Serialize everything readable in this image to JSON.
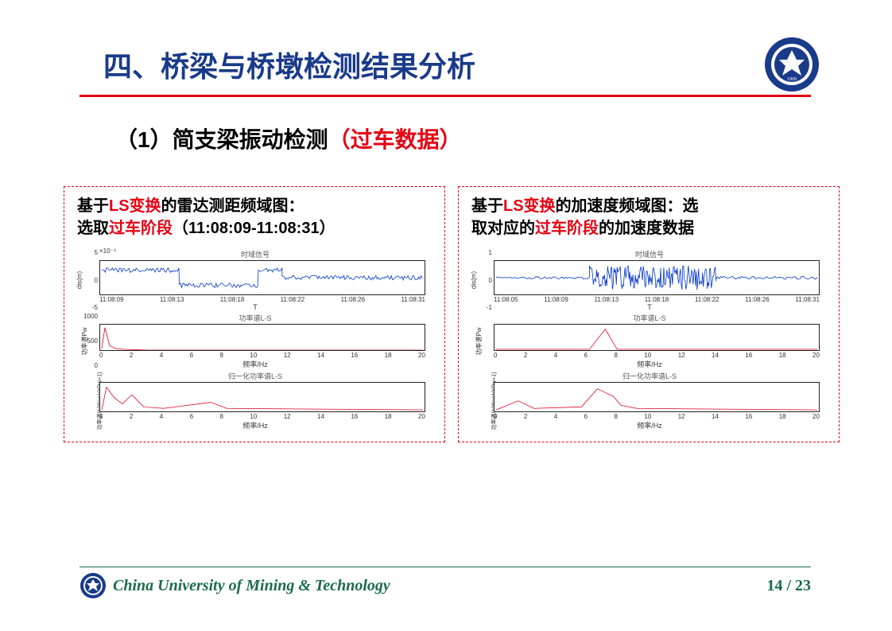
{
  "title": "四、桥梁与桥墩检测结果分析",
  "subtitle": {
    "prefix": "（1）简支梁振动检测",
    "suffix": "（过车数据）"
  },
  "colors": {
    "title": "#1a3a8a",
    "accent": "#e60012",
    "footer": "#1a6b4a",
    "signal_blue": "#0033cc",
    "signal_red": "#dd0022",
    "black": "#000000"
  },
  "footer": {
    "org": "China University of Mining  & Technology",
    "page_current": "14",
    "page_total": "23"
  },
  "left_panel": {
    "title_parts": [
      {
        "t": "基于",
        "c": "black"
      },
      {
        "t": "LS变换",
        "c": "red"
      },
      {
        "t": "的雷达测距频域图：",
        "c": "black"
      },
      {
        "t": "\n",
        "c": "black"
      },
      {
        "t": "选取",
        "c": "black"
      },
      {
        "t": "过车阶段",
        "c": "red"
      },
      {
        "t": "（11:08:09-11:08:31）",
        "c": "black"
      }
    ],
    "chart1": {
      "title": "时域信号",
      "ylabel": "dis(m)",
      "yexp": "×10⁻⁴",
      "height": 44,
      "yticks": [
        "5",
        "0",
        "-5"
      ],
      "xticks": [
        "11:08:09",
        "11:08:13",
        "11:08:18",
        "11:08:22",
        "11:08:26",
        "11:08:31"
      ],
      "xlabel": "T",
      "color": "#0033cc",
      "ylim": [
        -5,
        5
      ]
    },
    "chart2": {
      "title": "功率谱L-S",
      "ylabel": "功率谱Pw",
      "height": 34,
      "yticks": [
        "1000",
        "500",
        "0"
      ],
      "xticks": [
        "0",
        "2",
        "4",
        "6",
        "8",
        "10",
        "12",
        "14",
        "16",
        "18",
        "20"
      ],
      "xlabel": "频率/Hz",
      "color": "#dd0022",
      "ylim": [
        0,
        1000
      ]
    },
    "chart3": {
      "title": "归一化功率谱L-S",
      "ylabel": "功率谱/10*log10(Pw+1)",
      "height": 38,
      "yticks": [
        "",
        "",
        ""
      ],
      "xticks": [
        "0",
        "2",
        "4",
        "6",
        "8",
        "10",
        "12",
        "14",
        "16",
        "18",
        "20"
      ],
      "xlabel": "频率/Hz",
      "color": "#dd0022",
      "ylim": [
        0,
        10
      ]
    }
  },
  "right_panel": {
    "title_parts": [
      {
        "t": "基于",
        "c": "black"
      },
      {
        "t": "LS变换",
        "c": "red"
      },
      {
        "t": "的加速度频域图：选",
        "c": "black"
      },
      {
        "t": "\n",
        "c": "black"
      },
      {
        "t": "取对应的",
        "c": "black"
      },
      {
        "t": "过车阶段",
        "c": "red"
      },
      {
        "t": "的加速度数据",
        "c": "black"
      }
    ],
    "chart1": {
      "title": "时域信号",
      "ylabel": "dis(m)",
      "height": 44,
      "yticks": [
        "1",
        "0",
        "-1"
      ],
      "xticks": [
        "11:08:05",
        "11:08:09",
        "11:08:13",
        "11:08:18",
        "11:08:22",
        "11:08:26",
        "11:08:31"
      ],
      "xlabel": "T",
      "color": "#0033cc",
      "ylim": [
        -1,
        1
      ]
    },
    "chart2": {
      "title": "功率谱L-S",
      "ylabel": "功率谱Pw",
      "height": 34,
      "yticks": [
        "",
        "",
        ""
      ],
      "xticks": [
        "0",
        "2",
        "4",
        "6",
        "8",
        "10",
        "12",
        "14",
        "16",
        "18",
        "20"
      ],
      "xlabel": "频率/Hz",
      "color": "#dd0022",
      "ylim": [
        0,
        1
      ]
    },
    "chart3": {
      "title": "归一化功率谱L-S",
      "ylabel": "功率谱/10*log10(Pw+1)",
      "height": 38,
      "yticks": [
        "",
        "",
        ""
      ],
      "xticks": [
        "0",
        "2",
        "4",
        "6",
        "8",
        "10",
        "12",
        "14",
        "16",
        "18",
        "20"
      ],
      "xlabel": "频率/Hz",
      "color": "#dd0022",
      "ylim": [
        0,
        10
      ]
    }
  }
}
